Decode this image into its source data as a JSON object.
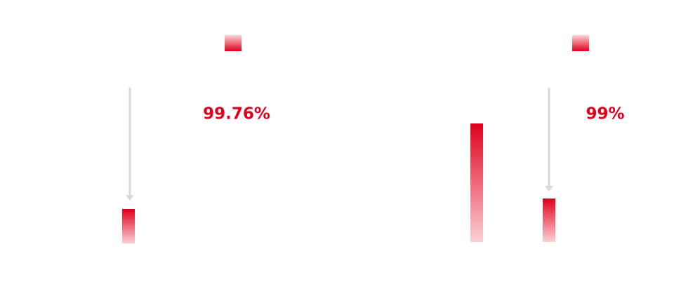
{
  "metrics": [
    {
      "label": "99.76%"
    },
    {
      "label": "99%"
    }
  ]
}
